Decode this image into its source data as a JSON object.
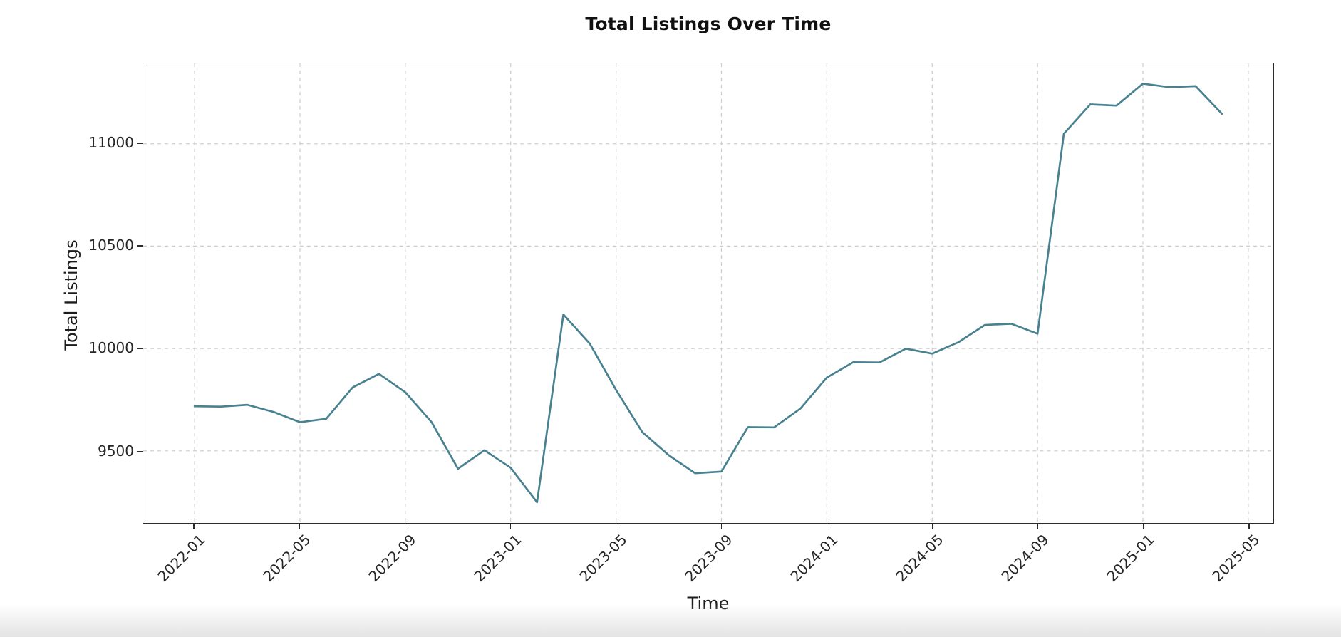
{
  "chart_data": {
    "type": "line",
    "title": "Total Listings Over Time",
    "xlabel": "Time",
    "ylabel": "Total Listings",
    "series_name": "Total Listings",
    "x": [
      "2022-01",
      "2022-02",
      "2022-03",
      "2022-04",
      "2022-05",
      "2022-06",
      "2022-07",
      "2022-08",
      "2022-09",
      "2022-10",
      "2022-11",
      "2022-12",
      "2023-01",
      "2023-02",
      "2023-03",
      "2023-04",
      "2023-05",
      "2023-06",
      "2023-07",
      "2023-08",
      "2023-09",
      "2023-10",
      "2023-11",
      "2023-12",
      "2024-01",
      "2024-02",
      "2024-03",
      "2024-04",
      "2024-05",
      "2024-06",
      "2024-07",
      "2024-08",
      "2024-09",
      "2024-10",
      "2024-11",
      "2024-12",
      "2025-01",
      "2025-02",
      "2025-03",
      "2025-04"
    ],
    "values": [
      9718,
      9716,
      9725,
      9690,
      9640,
      9657,
      9810,
      9876,
      9786,
      9640,
      9413,
      9503,
      9418,
      9249,
      10166,
      10024,
      9798,
      9591,
      9479,
      9391,
      9399,
      9616,
      9615,
      9707,
      9858,
      9933,
      9932,
      9999,
      9975,
      10031,
      10115,
      10121,
      10072,
      11049,
      11192,
      11186,
      11293,
      11276,
      11281,
      11146
    ],
    "x_ticks": [
      {
        "index": 0,
        "label": "2022-01"
      },
      {
        "index": 4,
        "label": "2022-05"
      },
      {
        "index": 8,
        "label": "2022-09"
      },
      {
        "index": 12,
        "label": "2023-01"
      },
      {
        "index": 16,
        "label": "2023-05"
      },
      {
        "index": 20,
        "label": "2023-09"
      },
      {
        "index": 24,
        "label": "2024-01"
      },
      {
        "index": 28,
        "label": "2024-05"
      },
      {
        "index": 32,
        "label": "2024-09"
      },
      {
        "index": 36,
        "label": "2025-01"
      },
      {
        "index": 40,
        "label": "2025-05"
      }
    ],
    "y_ticks": [
      {
        "value": 9500,
        "label": "9500"
      },
      {
        "value": 10000,
        "label": "10000"
      },
      {
        "value": 10500,
        "label": "10500"
      },
      {
        "value": 11000,
        "label": "11000"
      }
    ],
    "ylim": [
      9148,
      11392
    ],
    "xlim_index": [
      -1.95,
      40.95
    ],
    "grid": true,
    "grid_style": "dashed",
    "grid_color": "#cbcbcb",
    "line_color": "#48818f",
    "line_width": 2.7,
    "spine_color": "#2b2b2b",
    "legend_position": "none"
  }
}
